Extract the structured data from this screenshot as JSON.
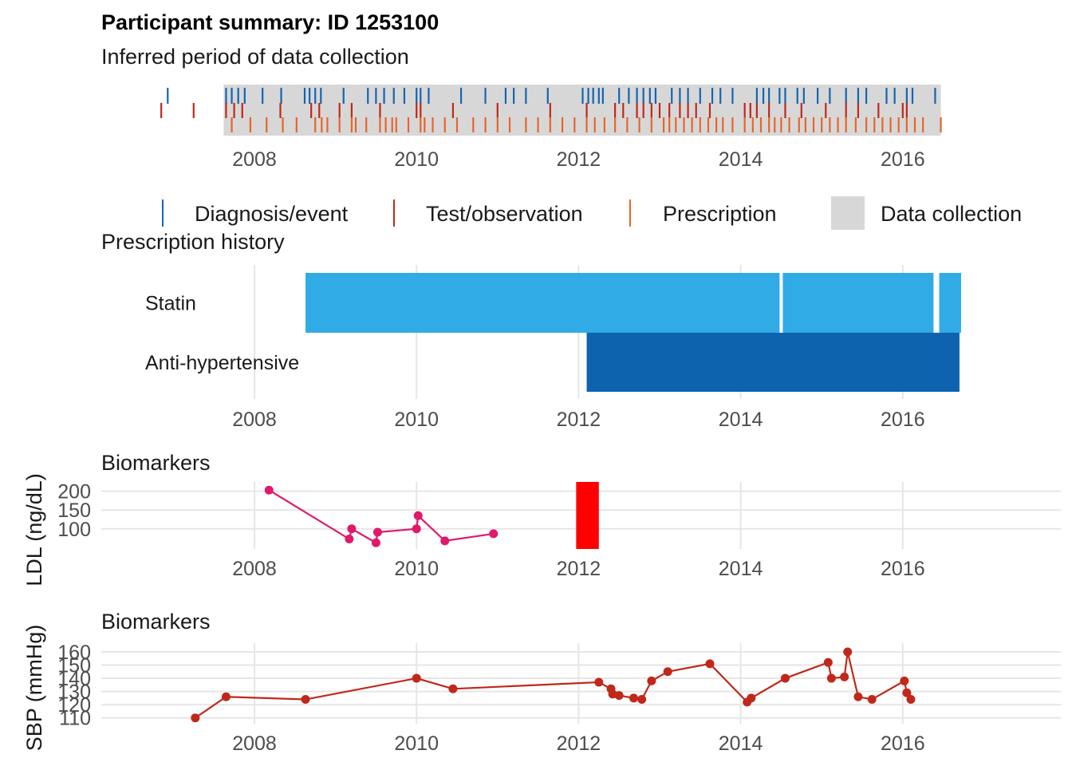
{
  "header": {
    "title": "Participant summary: ID 1253100",
    "subtitle": "Inferred period of data collection"
  },
  "colors": {
    "diagnosis": "#1565b0",
    "test": "#c0281a",
    "prescription": "#e8652b",
    "collection": "#d7d7d7",
    "statin": "#30abe6",
    "antihypertensive": "#0d63ae",
    "ldl": "#e0196b",
    "ldl_band": "#ff0000",
    "sbp": "#c0281a",
    "grid": "#e6e6e6"
  },
  "legend": {
    "items": [
      "Diagnosis/event",
      "Test/observation",
      "Prescription",
      "Data collection"
    ]
  },
  "chart_data": [
    {
      "type": "timeline",
      "title": "Inferred period of data collection",
      "x_ticks": [
        "2008",
        "2010",
        "2012",
        "2014",
        "2016"
      ],
      "xlim": [
        2006.2,
        2018.0
      ],
      "collection_period": [
        2007.62,
        2016.47
      ],
      "series": [
        {
          "name": "Diagnosis/event",
          "dates": [
            2006.93,
            2007.65,
            2007.72,
            2007.8,
            2007.88,
            2008.1,
            2008.33,
            2008.62,
            2008.68,
            2008.75,
            2008.82,
            2009.1,
            2009.4,
            2009.5,
            2009.6,
            2009.72,
            2009.85,
            2010.0,
            2010.05,
            2010.15,
            2010.55,
            2010.85,
            2011.1,
            2011.2,
            2011.35,
            2011.62,
            2012.05,
            2012.12,
            2012.18,
            2012.25,
            2012.3,
            2012.5,
            2012.62,
            2012.72,
            2012.8,
            2012.88,
            2012.95,
            2013.15,
            2013.25,
            2013.35,
            2013.5,
            2013.65,
            2013.75,
            2013.9,
            2014.2,
            2014.28,
            2014.35,
            2014.48,
            2014.55,
            2014.7,
            2014.78,
            2014.95,
            2015.1,
            2015.3,
            2015.45,
            2015.55,
            2015.8,
            2015.9,
            2016.05,
            2016.12,
            2016.4
          ]
        },
        {
          "name": "Test/observation",
          "dates": [
            2006.85,
            2007.25,
            2007.65,
            2007.75,
            2007.85,
            2008.32,
            2008.7,
            2008.8,
            2009.05,
            2009.2,
            2009.55,
            2010.0,
            2010.05,
            2010.45,
            2011.0,
            2011.65,
            2012.1,
            2012.45,
            2012.55,
            2012.72,
            2012.8,
            2012.9,
            2013.0,
            2013.12,
            2013.25,
            2013.35,
            2013.45,
            2013.62,
            2014.05,
            2014.12,
            2014.2,
            2014.35,
            2014.55,
            2014.75,
            2015.05,
            2015.3,
            2015.45,
            2015.7,
            2016.0,
            2016.05
          ]
        },
        {
          "name": "Prescription",
          "dates": [
            2007.72,
            2007.95,
            2008.15,
            2008.35,
            2008.52,
            2008.75,
            2008.83,
            2008.9,
            2009.05,
            2009.2,
            2009.25,
            2009.38,
            2009.55,
            2009.62,
            2009.7,
            2009.75,
            2009.9,
            2010.05,
            2010.1,
            2010.2,
            2010.35,
            2010.5,
            2010.7,
            2010.85,
            2011.0,
            2011.15,
            2011.35,
            2011.5,
            2011.65,
            2011.8,
            2011.95,
            2012.1,
            2012.2,
            2012.32,
            2012.45,
            2012.6,
            2012.75,
            2012.9,
            2013.05,
            2013.12,
            2013.2,
            2013.3,
            2013.4,
            2013.5,
            2013.6,
            2013.7,
            2013.78,
            2013.9,
            2014.05,
            2014.15,
            2014.25,
            2014.35,
            2014.42,
            2014.5,
            2014.6,
            2014.72,
            2014.8,
            2014.9,
            2015.0,
            2015.1,
            2015.2,
            2015.3,
            2015.42,
            2015.55,
            2015.65,
            2015.75,
            2015.85,
            2015.95,
            2016.05,
            2016.15,
            2016.25,
            2016.47
          ]
        }
      ]
    },
    {
      "type": "gantt",
      "title": "Prescription history",
      "x_ticks": [
        "2008",
        "2010",
        "2012",
        "2014",
        "2016"
      ],
      "xlim": [
        2006.2,
        2018.0
      ],
      "categories": [
        "Statin",
        "Anti-hypertensive"
      ],
      "series": [
        {
          "name": "Statin",
          "intervals": [
            [
              2008.63,
              2014.48
            ],
            [
              2014.52,
              2016.38
            ],
            [
              2016.45,
              2016.72
            ]
          ]
        },
        {
          "name": "Anti-hypertensive",
          "intervals": [
            [
              2012.1,
              2016.7
            ]
          ]
        }
      ]
    },
    {
      "type": "line",
      "title": "Biomarkers",
      "ylabel": "LDL (ng/dL)",
      "x_ticks": [
        "2008",
        "2010",
        "2012",
        "2014",
        "2016"
      ],
      "y_ticks": [
        "100",
        "150",
        "200"
      ],
      "xlim": [
        2006.2,
        2018.0
      ],
      "ylim": [
        55,
        212
      ],
      "shaded_band": [
        2011.97,
        2012.25
      ],
      "x": [
        2008.18,
        2009.17,
        2009.2,
        2009.5,
        2009.52,
        2010.0,
        2010.02,
        2010.35,
        2010.95
      ],
      "y": [
        203,
        73,
        100,
        63,
        91,
        100,
        135,
        68,
        87
      ]
    },
    {
      "type": "line",
      "title": "Biomarkers",
      "ylabel": "SBP (mmHg)",
      "x_ticks": [
        "2008",
        "2010",
        "2012",
        "2014",
        "2016"
      ],
      "y_ticks": [
        "110",
        "120",
        "130",
        "140",
        "150",
        "160"
      ],
      "xlim": [
        2006.2,
        2018.0
      ],
      "ylim": [
        108,
        163
      ],
      "x": [
        2007.27,
        2007.65,
        2008.63,
        2010.0,
        2010.45,
        2012.25,
        2012.4,
        2012.42,
        2012.5,
        2012.68,
        2012.78,
        2012.9,
        2013.1,
        2013.62,
        2014.08,
        2014.13,
        2014.55,
        2015.08,
        2015.12,
        2015.28,
        2015.32,
        2015.45,
        2015.62,
        2016.02,
        2016.05,
        2016.1
      ],
      "y": [
        110,
        126,
        124,
        140,
        132,
        137,
        132,
        128,
        127,
        125,
        124,
        138,
        145,
        151,
        122,
        125,
        140,
        152,
        140,
        141,
        160,
        126,
        124,
        138,
        129,
        124
      ]
    }
  ]
}
